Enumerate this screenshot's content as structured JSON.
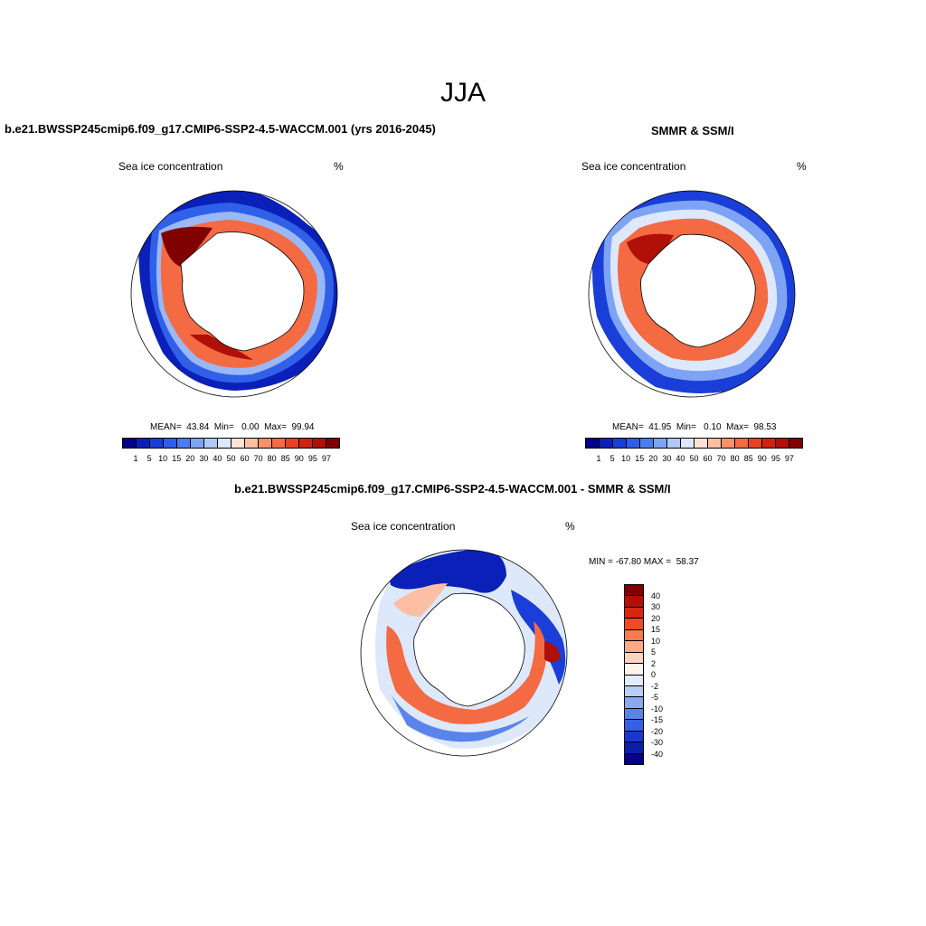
{
  "figure": {
    "season": "JJA"
  },
  "panels": {
    "model": {
      "title": "b.e21.BWSSP245cmip6.f09_g17.CMIP6-SSP2-4.5-WACCM.001 (yrs 2016-2045)",
      "variable": "Sea ice concentration",
      "units": "%",
      "stats": "MEAN=  43.84  Min=   0.00  Max=  99.94"
    },
    "obs": {
      "title": "SMMR & SSM/I",
      "variable": "Sea ice concentration",
      "units": "%",
      "stats": "MEAN=  41.95  Min=   0.10  Max=  98.53"
    },
    "diff": {
      "title": "b.e21.BWSSP245cmip6.f09_g17.CMIP6-SSP2-4.5-WACCM.001 - SMMR & SSM/I",
      "variable": "Sea ice concentration",
      "units": "%",
      "stats": "MIN = -67.80 MAX =  58.37"
    }
  },
  "colorbars": {
    "concentration": {
      "labels": [
        "1",
        "5",
        "10",
        "15",
        "20",
        "30",
        "40",
        "50",
        "60",
        "70",
        "80",
        "85",
        "90",
        "95",
        "97"
      ],
      "colors": [
        "#00008b",
        "#0a20b8",
        "#1a3ed8",
        "#2e5ee8",
        "#4a7ef0",
        "#7ea3f5",
        "#b0c8f8",
        "#dde8fb",
        "#ffe3d4",
        "#fcbfa3",
        "#f8906a",
        "#f36a43",
        "#e84222",
        "#cf2310",
        "#b01008",
        "#800000"
      ]
    },
    "difference": {
      "labels": [
        "40",
        "30",
        "20",
        "15",
        "10",
        "5",
        "2",
        "0",
        "-2",
        "-5",
        "-10",
        "-15",
        "-20",
        "-30",
        "-40"
      ],
      "colors": [
        "#800000",
        "#b01008",
        "#d6260f",
        "#ee4a24",
        "#f87a52",
        "#fcaa86",
        "#fdd4bf",
        "#fff2ea",
        "#e2ecfb",
        "#b8cdf7",
        "#89a9f2",
        "#5a84ec",
        "#3560e3",
        "#1a38cf",
        "#0a20a8",
        "#00008b"
      ]
    }
  }
}
